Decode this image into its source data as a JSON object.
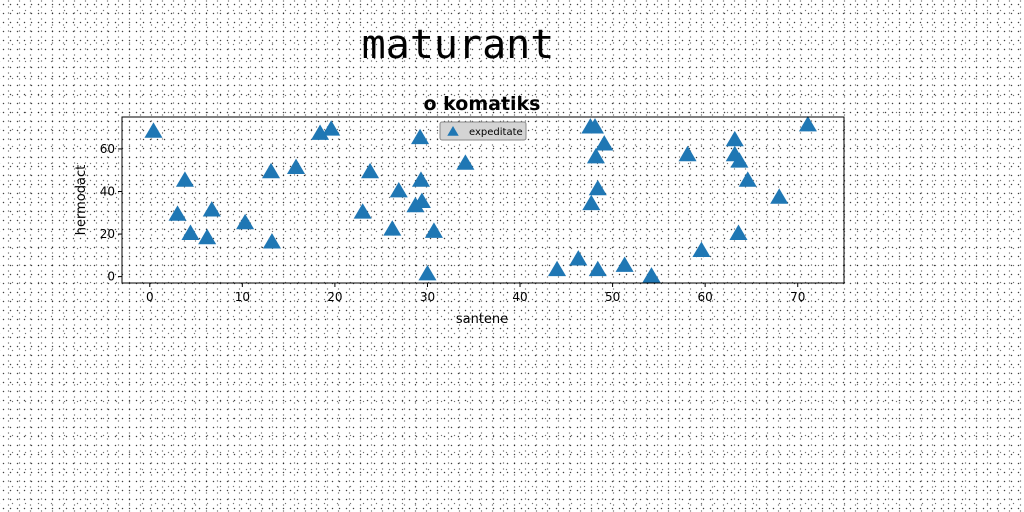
{
  "page": {
    "title": "maturant"
  },
  "chart_data": {
    "type": "scatter",
    "title": "o komatiks",
    "xlabel": "santene",
    "ylabel": "hermodact",
    "xlim": [
      -3,
      75
    ],
    "ylim": [
      -3,
      75
    ],
    "xticks": [
      0,
      10,
      20,
      30,
      40,
      50,
      60,
      70
    ],
    "yticks": [
      0,
      20,
      40,
      60
    ],
    "grid": false,
    "legend_position": "top-center",
    "marker": "triangle-up",
    "colors": {
      "series": "#1f77b4"
    },
    "series": [
      {
        "name": "expeditate",
        "points": [
          [
            0.4,
            68
          ],
          [
            3.0,
            29
          ],
          [
            3.8,
            45
          ],
          [
            4.4,
            20
          ],
          [
            6.2,
            18
          ],
          [
            6.7,
            31
          ],
          [
            10.3,
            25
          ],
          [
            13.1,
            49
          ],
          [
            13.2,
            16
          ],
          [
            15.8,
            51
          ],
          [
            18.4,
            67
          ],
          [
            19.6,
            69
          ],
          [
            23.0,
            30
          ],
          [
            23.8,
            49
          ],
          [
            26.2,
            22
          ],
          [
            26.9,
            40
          ],
          [
            28.7,
            33
          ],
          [
            29.2,
            65
          ],
          [
            29.3,
            45
          ],
          [
            29.4,
            35
          ],
          [
            30.0,
            1
          ],
          [
            30.7,
            21
          ],
          [
            34.1,
            53
          ],
          [
            44.0,
            3
          ],
          [
            46.3,
            8
          ],
          [
            47.6,
            70
          ],
          [
            47.7,
            34
          ],
          [
            48.1,
            70
          ],
          [
            48.2,
            56
          ],
          [
            48.4,
            41
          ],
          [
            48.4,
            3
          ],
          [
            49.1,
            62
          ],
          [
            51.3,
            5
          ],
          [
            54.2,
            0
          ],
          [
            58.1,
            57
          ],
          [
            59.6,
            12
          ],
          [
            63.2,
            64
          ],
          [
            63.2,
            57
          ],
          [
            63.6,
            20
          ],
          [
            63.7,
            54
          ],
          [
            64.6,
            45
          ],
          [
            68.0,
            37
          ],
          [
            71.1,
            71
          ]
        ]
      }
    ]
  }
}
